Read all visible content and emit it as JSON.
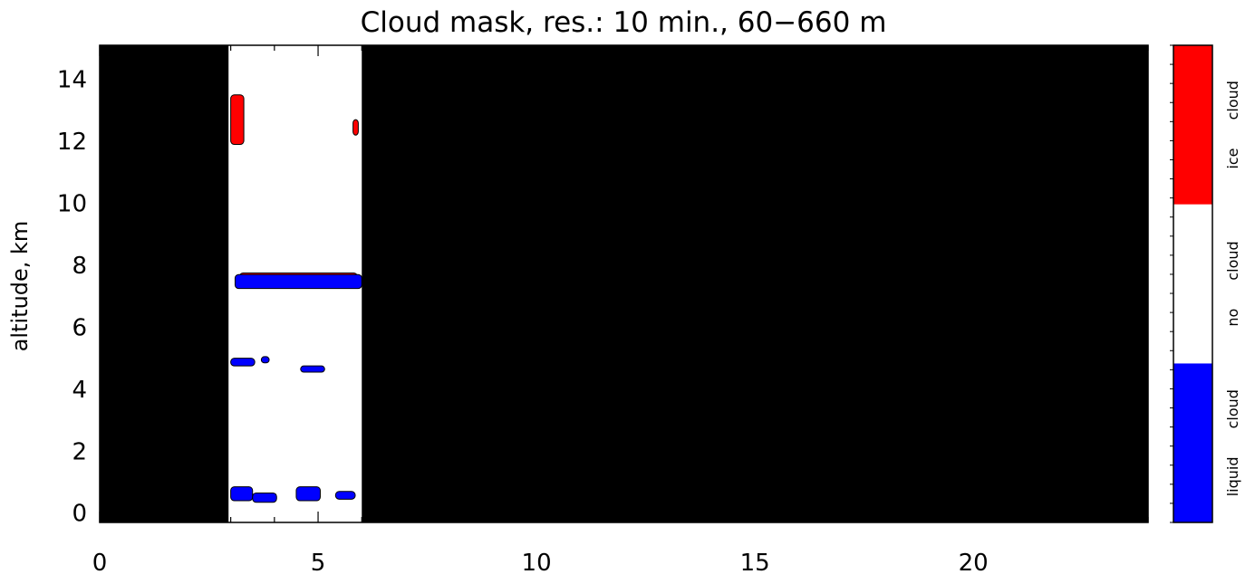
{
  "chart_data": {
    "type": "heatmap",
    "title": "Cloud mask, res.: 10 min., 60−660 m",
    "xlabel": "",
    "ylabel": "altitude, km",
    "xlim": [
      0,
      24
    ],
    "ylim": [
      -0.3,
      15.1
    ],
    "x_ticks": [
      0,
      5,
      10,
      15,
      20
    ],
    "y_ticks": [
      0,
      2,
      4,
      6,
      8,
      10,
      12,
      14
    ],
    "grid": false,
    "categories": [
      {
        "name": "liquid cloud",
        "color": "#0000ff"
      },
      {
        "name": "no cloud",
        "color": "#ffffff"
      },
      {
        "name": "ice cloud",
        "color": "#ff0000"
      }
    ],
    "missing_color": "#000000",
    "data_window_x": [
      2.95,
      6.0
    ],
    "regions": [
      {
        "class": "ice cloud",
        "x": [
          3.0,
          3.3
        ],
        "y": [
          11.9,
          13.5
        ]
      },
      {
        "class": "ice cloud",
        "x": [
          5.8,
          5.92
        ],
        "y": [
          12.2,
          12.7
        ]
      },
      {
        "class": "ice cloud",
        "x": [
          3.2,
          5.9
        ],
        "y": [
          7.5,
          7.75
        ]
      },
      {
        "class": "liquid cloud",
        "x": [
          3.1,
          6.0
        ],
        "y": [
          7.25,
          7.7
        ]
      },
      {
        "class": "liquid cloud",
        "x": [
          3.0,
          3.55
        ],
        "y": [
          4.75,
          5.0
        ]
      },
      {
        "class": "liquid cloud",
        "x": [
          3.7,
          3.88
        ],
        "y": [
          4.85,
          5.05
        ]
      },
      {
        "class": "liquid cloud",
        "x": [
          4.6,
          5.15
        ],
        "y": [
          4.55,
          4.75
        ]
      },
      {
        "class": "liquid cloud",
        "x": [
          3.0,
          3.5
        ],
        "y": [
          0.4,
          0.85
        ]
      },
      {
        "class": "liquid cloud",
        "x": [
          3.5,
          4.05
        ],
        "y": [
          0.35,
          0.65
        ]
      },
      {
        "class": "liquid cloud",
        "x": [
          4.5,
          5.05
        ],
        "y": [
          0.4,
          0.85
        ]
      },
      {
        "class": "liquid cloud",
        "x": [
          5.4,
          5.85
        ],
        "y": [
          0.45,
          0.7
        ]
      }
    ],
    "colorbar": {
      "labels": [
        "liquid cloud",
        "no cloud",
        "ice cloud"
      ],
      "placement": "right"
    }
  }
}
